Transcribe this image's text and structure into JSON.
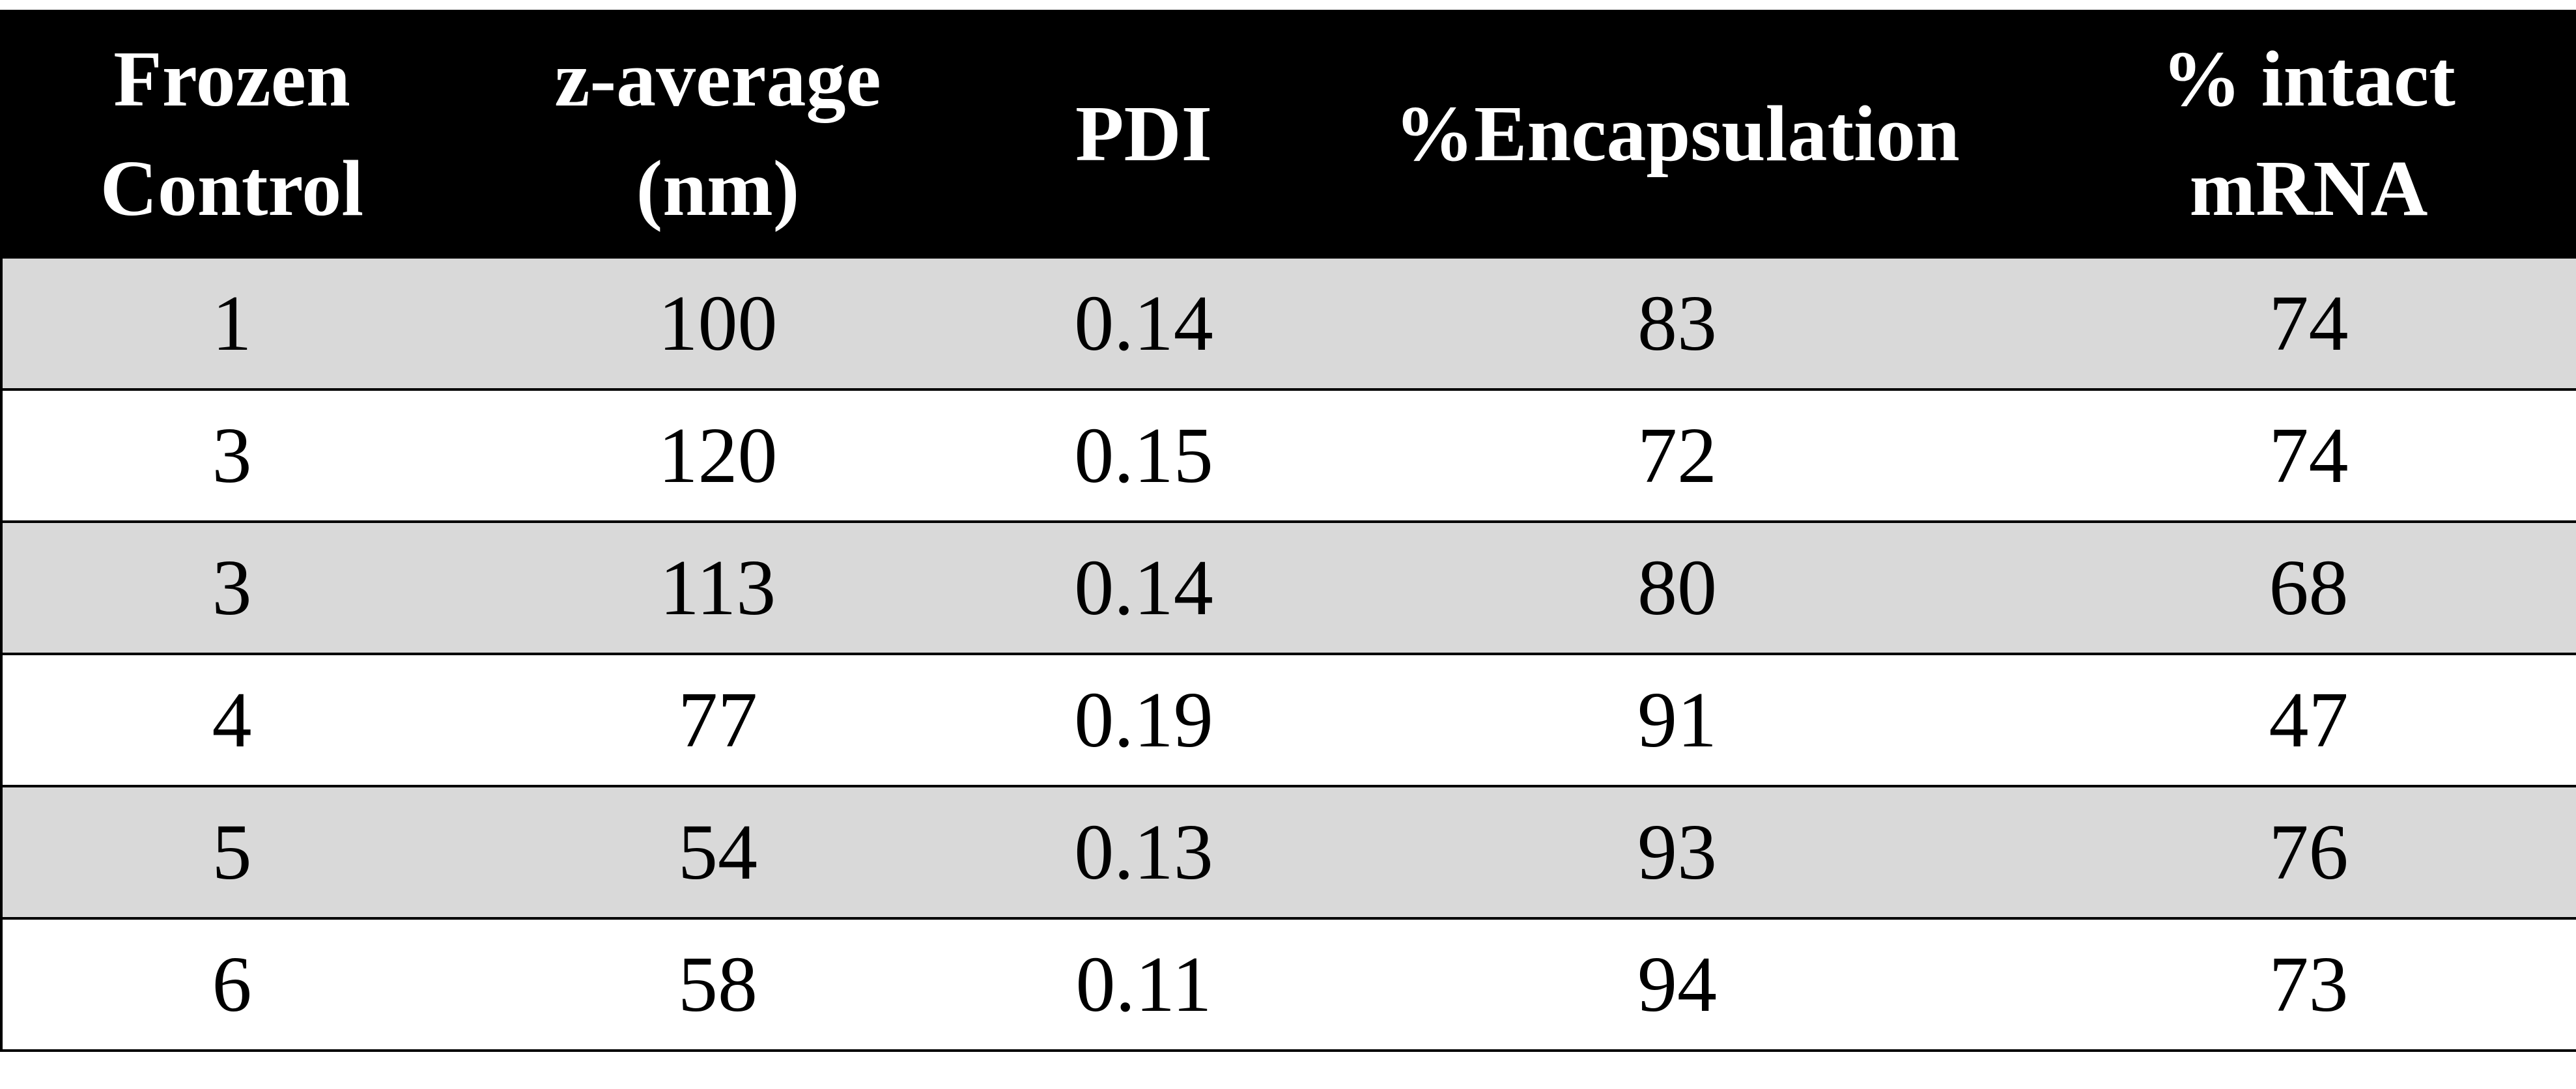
{
  "table": {
    "headers": [
      [
        "Frozen",
        "Control"
      ],
      [
        "z-average",
        "(nm)"
      ],
      [
        "PDI"
      ],
      [
        "%Encapsulation"
      ],
      [
        "% intact",
        "mRNA"
      ]
    ],
    "rows": [
      [
        "1",
        "100",
        "0.14",
        "83",
        "74"
      ],
      [
        "3",
        "120",
        "0.15",
        "72",
        "74"
      ],
      [
        "3",
        "113",
        "0.14",
        "80",
        "68"
      ],
      [
        "4",
        "77",
        "0.19",
        "91",
        "47"
      ],
      [
        "5",
        "54",
        "0.13",
        "93",
        "76"
      ],
      [
        "6",
        "58",
        "0.11",
        "94",
        "73"
      ]
    ]
  },
  "colors": {
    "header_bg": "#000000",
    "header_text": "#ffffff",
    "shaded_row": "#d9d9d9",
    "plain_row": "#ffffff"
  }
}
